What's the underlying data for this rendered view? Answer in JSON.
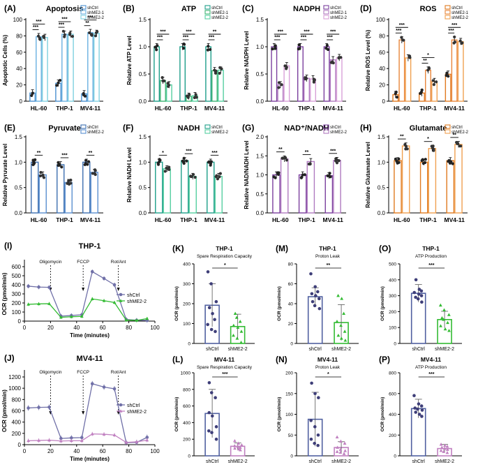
{
  "colors": {
    "apoptosis": [
      "#4a90d0",
      "#6ab0e0",
      "#7fd0e0"
    ],
    "atp": [
      "#1e9e8a",
      "#3cb371",
      "#55cfa0"
    ],
    "nadph": [
      "#7b3f9e",
      "#b07ac0",
      "#d8a0d8"
    ],
    "ros": [
      "#e07a20",
      "#e8853a",
      "#f0a050"
    ],
    "pyruvate": [
      "#3d6fb0",
      "#5a8fd0"
    ],
    "nadh": [
      "#1e9e8a",
      "#55cfa0"
    ],
    "nadnadh": [
      "#7b3f9e",
      "#b07ac0"
    ],
    "glutamate": [
      "#e07a20",
      "#f0a050"
    ],
    "trace_ctrl": "#7070a8",
    "trace_thp_kd": "#33bb33",
    "trace_mv_kd": "#c080c0",
    "box_ctrl": "#5060a0",
    "box_thp_kd": "#33bb33",
    "box_mv_kd": "#c080c0"
  },
  "chart_data": [
    {
      "id": "A",
      "panel_label": "(A)",
      "type": "bar",
      "title": "Apoptosis",
      "ylabel": "Apoptotic Cells (%)",
      "ylim": [
        0,
        100
      ],
      "yticks": [
        "0",
        "20",
        "40",
        "60",
        "80",
        "100"
      ],
      "categories": [
        "HL-60",
        "THP-1",
        "MV4-11"
      ],
      "series": [
        {
          "name": "shCtrl",
          "values": [
            10,
            22,
            9
          ]
        },
        {
          "name": "shME2-1",
          "values": [
            79,
            82,
            84
          ]
        },
        {
          "name": "shME2-2",
          "values": [
            78,
            82,
            83
          ]
        }
      ],
      "significance": [
        {
          "cat": 0,
          "from": 0,
          "to": 2,
          "label": "***"
        },
        {
          "cat": 0,
          "from": 0,
          "to": 1,
          "label": "***"
        },
        {
          "cat": 1,
          "from": 0,
          "to": 2,
          "label": "***"
        },
        {
          "cat": 1,
          "from": 0,
          "to": 1,
          "label": "***"
        },
        {
          "cat": 2,
          "from": 0,
          "to": 2,
          "label": "***"
        },
        {
          "cat": 2,
          "from": 0,
          "to": 1,
          "label": "**"
        }
      ]
    },
    {
      "id": "B",
      "panel_label": "(B)",
      "type": "bar",
      "title": "ATP",
      "ylabel": "Relative ATP Level",
      "ylim": [
        0,
        1.5
      ],
      "yticks": [
        "0.0",
        "0.5",
        "1.0",
        "1.5"
      ],
      "categories": [
        "HL-60",
        "THP-1",
        "MV4-11"
      ],
      "series": [
        {
          "name": "shCtrl",
          "values": [
            1.0,
            1.0,
            1.0
          ]
        },
        {
          "name": "shME2-1",
          "values": [
            0.38,
            0.09,
            0.56
          ]
        },
        {
          "name": "shME2-2",
          "values": [
            0.3,
            0.1,
            0.57
          ]
        }
      ],
      "significance": [
        {
          "cat": 0,
          "from": 0,
          "to": 2,
          "label": "***"
        },
        {
          "cat": 0,
          "from": 0,
          "to": 1,
          "label": "***"
        },
        {
          "cat": 1,
          "from": 0,
          "to": 2,
          "label": "***"
        },
        {
          "cat": 1,
          "from": 0,
          "to": 1,
          "label": "***"
        },
        {
          "cat": 2,
          "from": 0,
          "to": 2,
          "label": "**"
        },
        {
          "cat": 2,
          "from": 0,
          "to": 1,
          "label": "***"
        }
      ]
    },
    {
      "id": "C",
      "panel_label": "(C)",
      "type": "bar",
      "title": "NADPH",
      "ylabel": "Relative NADPH Level",
      "ylim": [
        0,
        1.5
      ],
      "yticks": [
        "0.0",
        "0.5",
        "1.0",
        "1.5"
      ],
      "categories": [
        "HL-60",
        "THP-1",
        "MV4-11"
      ],
      "series": [
        {
          "name": "shCtrl",
          "values": [
            1.0,
            1.0,
            1.0
          ]
        },
        {
          "name": "shME2-1",
          "values": [
            0.3,
            0.42,
            0.76
          ]
        },
        {
          "name": "shME2-2",
          "values": [
            0.65,
            0.41,
            0.8
          ]
        }
      ],
      "significance": [
        {
          "cat": 0,
          "from": 0,
          "to": 2,
          "label": "***"
        },
        {
          "cat": 0,
          "from": 0,
          "to": 1,
          "label": "***"
        },
        {
          "cat": 1,
          "from": 0,
          "to": 2,
          "label": "***"
        },
        {
          "cat": 1,
          "from": 0,
          "to": 1,
          "label": "***"
        },
        {
          "cat": 2,
          "from": 0,
          "to": 2,
          "label": "***"
        },
        {
          "cat": 2,
          "from": 0,
          "to": 1,
          "label": "***"
        }
      ]
    },
    {
      "id": "D",
      "panel_label": "(D)",
      "type": "bar",
      "title": "ROS",
      "ylabel": "Relative ROS Level (%)",
      "ylim": [
        0,
        100
      ],
      "yticks": [
        "0",
        "20",
        "40",
        "60",
        "80",
        "100"
      ],
      "categories": [
        "HL-60",
        "THP-1",
        "MV4-11"
      ],
      "series": [
        {
          "name": "shCtrl",
          "values": [
            8,
            10,
            33
          ]
        },
        {
          "name": "shME2-1",
          "values": [
            75,
            38,
            75
          ]
        },
        {
          "name": "shME2-2",
          "values": [
            53,
            24,
            73
          ]
        }
      ],
      "significance": [
        {
          "cat": 0,
          "from": 0,
          "to": 2,
          "label": "***"
        },
        {
          "cat": 0,
          "from": 0,
          "to": 1,
          "label": "***"
        },
        {
          "cat": 1,
          "from": 0,
          "to": 2,
          "label": "*"
        },
        {
          "cat": 1,
          "from": 0,
          "to": 1,
          "label": "**"
        },
        {
          "cat": 2,
          "from": 0,
          "to": 2,
          "label": "***"
        },
        {
          "cat": 2,
          "from": 0,
          "to": 1,
          "label": "***"
        }
      ]
    },
    {
      "id": "E",
      "panel_label": "(E)",
      "type": "bar",
      "title": "Pyruvate",
      "ylabel": "Relative Pyruvate Level",
      "ylim": [
        0,
        1.5
      ],
      "yticks": [
        "0.0",
        "0.5",
        "1.0",
        "1.5"
      ],
      "categories": [
        "HL-60",
        "THP-1",
        "MV4-11"
      ],
      "series": [
        {
          "name": "shCtrl",
          "values": [
            1.0,
            0.95,
            1.0
          ]
        },
        {
          "name": "shME2-2",
          "values": [
            0.75,
            0.6,
            0.8
          ]
        }
      ],
      "significance": [
        {
          "cat": 0,
          "from": 0,
          "to": 1,
          "label": "**"
        },
        {
          "cat": 1,
          "from": 0,
          "to": 1,
          "label": "***"
        },
        {
          "cat": 2,
          "from": 0,
          "to": 1,
          "label": "**"
        }
      ]
    },
    {
      "id": "F",
      "panel_label": "(F)",
      "type": "bar",
      "title": "NADH",
      "ylabel": "Relative NADH Level",
      "ylim": [
        0,
        1.5
      ],
      "yticks": [
        "0.0",
        "0.5",
        "1.0",
        "1.5"
      ],
      "categories": [
        "HL-60",
        "THP-1",
        "MV4-11"
      ],
      "series": [
        {
          "name": "shCtrl",
          "values": [
            1.0,
            1.03,
            1.0
          ]
        },
        {
          "name": "shME2-2",
          "values": [
            0.87,
            0.72,
            0.72
          ]
        }
      ],
      "significance": [
        {
          "cat": 0,
          "from": 0,
          "to": 1,
          "label": "*"
        },
        {
          "cat": 1,
          "from": 0,
          "to": 1,
          "label": "***"
        },
        {
          "cat": 2,
          "from": 0,
          "to": 1,
          "label": "***"
        }
      ]
    },
    {
      "id": "G",
      "panel_label": "(G)",
      "type": "bar",
      "title": "NAD⁺/NADH",
      "ylabel": "Relative NAD/NADH Level",
      "ylim": [
        0,
        2.0
      ],
      "yticks": [
        "0.0",
        "0.5",
        "1.0",
        "1.5",
        "2.0"
      ],
      "categories": [
        "HL-60",
        "THP-1",
        "MV4-11"
      ],
      "series": [
        {
          "name": "shCtrl",
          "values": [
            1.0,
            1.0,
            0.98
          ]
        },
        {
          "name": "shME2-2",
          "values": [
            1.42,
            1.35,
            1.38
          ]
        }
      ],
      "significance": [
        {
          "cat": 0,
          "from": 0,
          "to": 1,
          "label": "**"
        },
        {
          "cat": 1,
          "from": 0,
          "to": 1,
          "label": "**"
        },
        {
          "cat": 2,
          "from": 0,
          "to": 1,
          "label": "***"
        }
      ]
    },
    {
      "id": "H",
      "panel_label": "(H)",
      "type": "bar",
      "title": "Glutamate",
      "ylabel": "Relative Glutamate Level",
      "ylim": [
        0,
        1.5
      ],
      "yticks": [
        "0.0",
        "0.5",
        "1.0",
        "1.5"
      ],
      "categories": [
        "HL-60",
        "THP-1",
        "MV4-11"
      ],
      "series": [
        {
          "name": "shCtrl",
          "values": [
            1.03,
            1.0,
            1.03
          ]
        },
        {
          "name": "shME2-2",
          "values": [
            1.32,
            1.27,
            1.35
          ]
        }
      ],
      "significance": [
        {
          "cat": 0,
          "from": 0,
          "to": 1,
          "label": "**"
        },
        {
          "cat": 1,
          "from": 0,
          "to": 1,
          "label": "*"
        },
        {
          "cat": 2,
          "from": 0,
          "to": 1,
          "label": "**"
        }
      ]
    },
    {
      "id": "I",
      "panel_label": "(I)",
      "type": "line",
      "title": "THP-1",
      "xlabel": "Time (minutes)",
      "ylabel": "OCR (pmol/min)",
      "xlim": [
        0,
        100
      ],
      "ylim": [
        0,
        600
      ],
      "xticks": [
        "0",
        "20",
        "40",
        "60",
        "80",
        "100"
      ],
      "yticks": [
        "0",
        "100",
        "200",
        "300",
        "400",
        "500",
        "600"
      ],
      "annotations": [
        {
          "label": "Oligomycin",
          "x": 20
        },
        {
          "label": "FCCP",
          "x": 45
        },
        {
          "label": "Rot/Ant",
          "x": 72
        }
      ],
      "x": [
        3,
        11,
        19,
        28,
        36,
        44,
        52,
        61,
        69,
        78,
        86,
        94
      ],
      "series": [
        {
          "name": "shCtrl",
          "values": [
            385,
            375,
            372,
            55,
            62,
            70,
            545,
            470,
            400,
            18,
            10,
            8
          ]
        },
        {
          "name": "shME2-2",
          "values": [
            185,
            190,
            192,
            42,
            48,
            52,
            245,
            225,
            205,
            12,
            8,
            28
          ]
        }
      ]
    },
    {
      "id": "J",
      "panel_label": "(J)",
      "type": "line",
      "title": "MV4-11",
      "xlabel": "Time (minutes)",
      "ylabel": "OCR (pmol/min)",
      "xlim": [
        0,
        100
      ],
      "ylim": [
        0,
        1200
      ],
      "xticks": [
        "0",
        "20",
        "40",
        "60",
        "80",
        "100"
      ],
      "yticks": [
        "0",
        "200",
        "400",
        "600",
        "800",
        "1000",
        "1200"
      ],
      "annotations": [
        {
          "label": "Oligomycin",
          "x": 20
        },
        {
          "label": "FCCP",
          "x": 45
        },
        {
          "label": "Rot/Ant",
          "x": 72
        }
      ],
      "x": [
        3,
        11,
        19,
        28,
        36,
        44,
        52,
        61,
        69,
        78,
        86,
        94
      ],
      "series": [
        {
          "name": "shCtrl",
          "values": [
            650,
            660,
            665,
            110,
            120,
            125,
            1080,
            1020,
            990,
            35,
            40,
            130
          ]
        },
        {
          "name": "shME2-2",
          "values": [
            70,
            75,
            80,
            65,
            70,
            70,
            190,
            185,
            170,
            40,
            50,
            80
          ]
        }
      ]
    },
    {
      "id": "K",
      "panel_label": "(K)",
      "type": "bar",
      "title": "THP-1",
      "subtitle": "Spare Respiration Capacity",
      "ylabel": "OCR (pmol/min)",
      "ylim": [
        0,
        400
      ],
      "yticks": [
        "0",
        "100",
        "200",
        "300",
        "400"
      ],
      "categories": [
        "shCtrl",
        "shME2-2"
      ],
      "values": [
        192,
        85
      ],
      "errors": [
        108,
        62
      ],
      "points": [
        [
          360,
          300,
          210,
          180,
          150,
          120,
          95,
          70,
          60
        ],
        [
          150,
          130,
          110,
          90,
          80,
          60,
          40,
          25,
          5
        ]
      ],
      "significance": "*"
    },
    {
      "id": "M",
      "panel_label": "(M)",
      "type": "bar",
      "title": "THP-1",
      "subtitle": "Proton Leak",
      "ylabel": "OCR (pmol/min)",
      "ylim": [
        0,
        80
      ],
      "yticks": [
        "0",
        "20",
        "40",
        "60",
        "80"
      ],
      "categories": [
        "shCtrl",
        "shME2-2"
      ],
      "values": [
        47,
        21
      ],
      "errors": [
        9,
        18
      ],
      "points": [
        [
          70,
          57,
          52,
          50,
          48,
          45,
          42,
          38,
          35
        ],
        [
          48,
          45,
          30,
          22,
          18,
          12,
          8,
          5,
          3
        ]
      ],
      "significance": "**"
    },
    {
      "id": "O",
      "panel_label": "(O)",
      "type": "bar",
      "title": "THP-1",
      "subtitle": "ATP Production",
      "ylabel": "OCR (pmol/min)",
      "ylim": [
        0,
        500
      ],
      "yticks": [
        "0",
        "100",
        "200",
        "300",
        "400",
        "500"
      ],
      "categories": [
        "shCtrl",
        "shME2-2"
      ],
      "values": [
        315,
        150
      ],
      "errors": [
        55,
        52
      ],
      "points": [
        [
          400,
          340,
          330,
          320,
          310,
          300,
          290,
          280,
          260
        ],
        [
          240,
          210,
          180,
          160,
          150,
          130,
          110,
          90,
          80
        ]
      ],
      "significance": "***"
    },
    {
      "id": "L",
      "panel_label": "(L)",
      "type": "bar",
      "title": "MV4-11",
      "subtitle": "Spare Respiration Capacity",
      "ylabel": "OCR (pmol/min)",
      "ylim": [
        0,
        1000
      ],
      "yticks": [
        "0",
        "200",
        "400",
        "600",
        "800",
        "1000"
      ],
      "categories": [
        "shCtrl",
        "shME2-2"
      ],
      "values": [
        510,
        115
      ],
      "errors": [
        290,
        40
      ],
      "points": [
        [
          880,
          760,
          700,
          520,
          480,
          350,
          300,
          280,
          200
        ],
        [
          180,
          150,
          130,
          120,
          110,
          100,
          90,
          80,
          70
        ]
      ],
      "significance": "***"
    },
    {
      "id": "N",
      "panel_label": "(N)",
      "type": "bar",
      "title": "MV4-11",
      "subtitle": "Proton Leak",
      "ylabel": "OCR (pmol/min)",
      "ylim": [
        0,
        200
      ],
      "yticks": [
        "0",
        "50",
        "100",
        "150",
        "200"
      ],
      "categories": [
        "shCtrl",
        "shME2-2"
      ],
      "values": [
        88,
        20
      ],
      "errors": [
        65,
        14
      ],
      "points": [
        [
          175,
          150,
          140,
          85,
          70,
          50,
          40,
          30,
          25
        ],
        [
          45,
          35,
          30,
          20,
          15,
          12,
          10,
          8,
          5
        ]
      ],
      "significance": "*"
    },
    {
      "id": "P",
      "panel_label": "(P)",
      "type": "bar",
      "title": "MV4-11",
      "subtitle": "ATP Production",
      "ylabel": "OCR (pmol/min)",
      "ylim": [
        0,
        800
      ],
      "yticks": [
        "0",
        "200",
        "400",
        "600",
        "800"
      ],
      "categories": [
        "shCtrl",
        "shME2-2"
      ],
      "values": [
        455,
        70
      ],
      "errors": [
        90,
        40
      ],
      "points": [
        [
          580,
          500,
          480,
          460,
          450,
          440,
          420,
          400,
          380
        ],
        [
          110,
          100,
          90,
          80,
          70,
          60,
          50,
          40,
          30
        ]
      ],
      "significance": "***"
    }
  ]
}
